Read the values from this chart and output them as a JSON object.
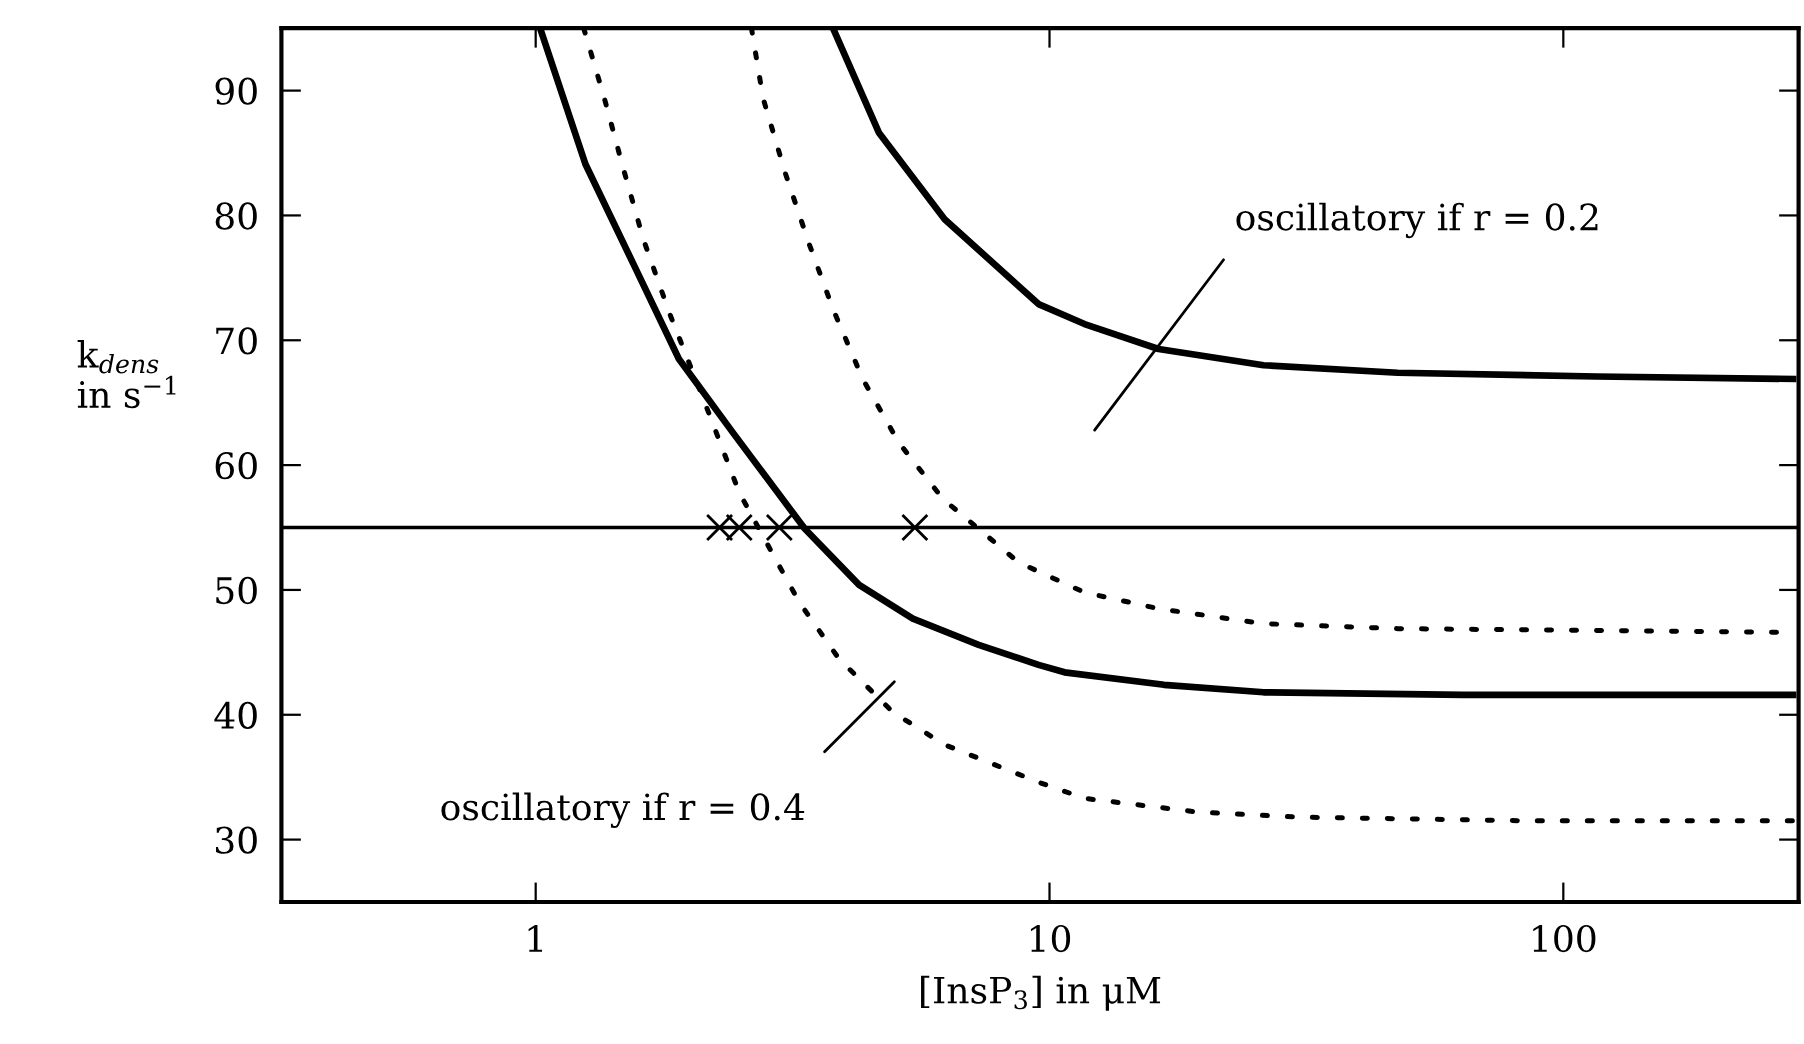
{
  "chart_data": {
    "type": "line",
    "xlabel": "[InsP$_{3}$] in μM",
    "ylabel": "k$_{dens}$\nin s$^{−1}$",
    "log": "x",
    "grid": false,
    "legend": false,
    "xlim": [
      0.32,
      287
    ],
    "ylim": [
      25,
      95
    ],
    "xticks": [
      1,
      10,
      100
    ],
    "yticks": [
      30,
      40,
      50,
      60,
      70,
      80,
      90
    ],
    "ref_lines": [
      {
        "axis": "y",
        "value": 55,
        "color": "#000000",
        "line_style": "solid"
      }
    ],
    "annotations": [
      "oscillatory if r = 0.2",
      "oscillatory if r = 0.4"
    ],
    "series": [
      {
        "line_style": "solid",
        "color": "#000000",
        "x": [
          1.02,
          1.25,
          1.55,
          1.9,
          2.42,
          3.34,
          4.26,
          5.42,
          7.28,
          9.52,
          10.7,
          16.7,
          26.1,
          63.9,
          280
        ],
        "values": [
          95,
          84.1,
          76.1,
          68.5,
          62.6,
          54.9,
          50.4,
          47.7,
          45.6,
          44.0,
          43.4,
          42.4,
          41.8,
          41.6,
          41.6
        ]
      },
      {
        "line_style": "solid",
        "color": "#000000",
        "x": [
          3.79,
          4.66,
          6.25,
          9.52,
          11.7,
          16.3,
          26.1,
          47.6,
          116,
          280
        ],
        "values": [
          95,
          86.6,
          79.7,
          72.9,
          71.3,
          69.3,
          68.0,
          67.4,
          67.1,
          66.9
        ]
      },
      {
        "line_style": "dotted",
        "color": "#000000",
        "x": [
          1.24,
          1.36,
          1.48,
          1.62,
          1.82,
          2.12,
          2.49,
          2.9,
          3.26,
          3.89,
          4.96,
          6.25,
          9.52,
          11.7,
          19.5,
          30.4,
          86.7,
          280
        ],
        "values": [
          95,
          89.4,
          83.8,
          78.1,
          72.2,
          65.3,
          57.8,
          52.8,
          49.0,
          44.5,
          40.2,
          37.6,
          34.6,
          33.3,
          32.2,
          31.8,
          31.5,
          31.5
        ]
      },
      {
        "line_style": "dotted",
        "color": "#000000",
        "x": [
          2.63,
          2.77,
          3.06,
          3.4,
          3.79,
          4.33,
          5.09,
          6.2,
          8.71,
          11.7,
          16.3,
          26.1,
          47.6,
          280
        ],
        "values": [
          95,
          89.4,
          83.4,
          77.8,
          72.5,
          66.9,
          61.8,
          57.3,
          52.2,
          49.8,
          48.5,
          47.3,
          46.9,
          46.6
        ]
      },
      {
        "type": "scatter",
        "marker": "cross",
        "color": "#000000",
        "x": [
          2.28,
          2.49,
          2.98,
          5.47
        ],
        "values": [
          55,
          55,
          55,
          55
        ]
      }
    ]
  }
}
